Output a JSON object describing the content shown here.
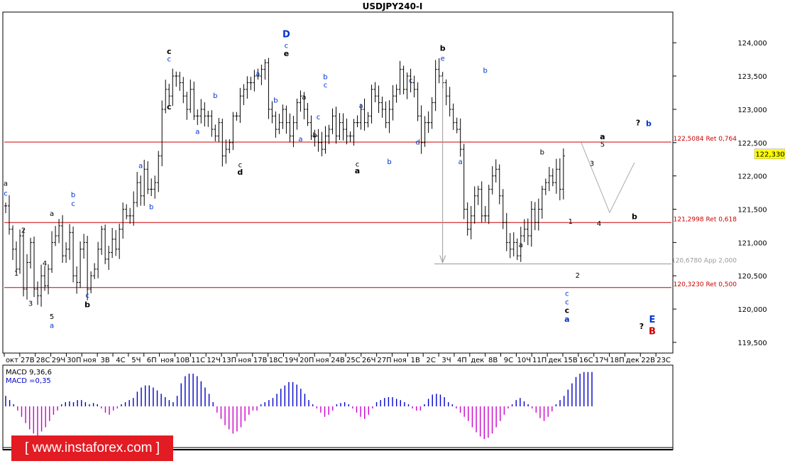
{
  "chart_data": {
    "type": "line",
    "title": "USDJPY240-I",
    "price_axis": {
      "range": [
        119.35,
        124.45
      ],
      "ticks": [
        "124,000",
        "123,500",
        "123,000",
        "122,500",
        "122,000",
        "121,500",
        "121,000",
        "120,500",
        "120,000",
        "119,500"
      ],
      "tick_values": [
        124.0,
        123.5,
        123.0,
        122.5,
        122.0,
        121.5,
        121.0,
        120.5,
        120.0,
        119.5
      ],
      "current_price": "122,330",
      "current_value": 122.33
    },
    "time_axis": {
      "labels": [
        "окт",
        "27В",
        "28С",
        "29Ч",
        "30П",
        "ноя",
        "3В",
        "4С",
        "5Ч",
        "6П",
        "ноя",
        "10В",
        "11С",
        "12Ч",
        "13П",
        "ноя",
        "17В",
        "18С",
        "19Ч",
        "20П",
        "ноя",
        "24В",
        "25С",
        "26Ч",
        "27П",
        "ноя",
        "1В",
        "2С",
        "3Ч",
        "4П",
        "дек",
        "8В",
        "9С",
        "10Ч",
        "11П",
        "дек",
        "15В",
        "16С",
        "17Ч",
        "18П",
        "дек",
        "22В",
        "23С"
      ]
    },
    "levels": [
      {
        "value": 122.5084,
        "label": "122,5084 Ret 0,764",
        "color": "#cc0000"
      },
      {
        "value": 121.2998,
        "label": "121,2998 Ret 0,618",
        "color": "#cc0000"
      },
      {
        "value": 120.678,
        "label": "120,6780 App 2,000",
        "color": "#999999"
      },
      {
        "value": 120.323,
        "label": "120,3230 Ret 0,500",
        "color": "#cc0000"
      }
    ],
    "series": [
      {
        "values": [
          121.55,
          121.2,
          120.9,
          120.6,
          121.1,
          120.3,
          120.7,
          121.0,
          120.3,
          120.2,
          120.5,
          120.35,
          120.6,
          121.0,
          121.1,
          121.25,
          120.8,
          120.9,
          121.15,
          120.5,
          120.4,
          120.9,
          121.0,
          120.3,
          120.5,
          120.6,
          120.9,
          121.2,
          120.75,
          120.85,
          121.05,
          120.9,
          121.2,
          121.5,
          121.4,
          121.4,
          121.6,
          121.9,
          121.7,
          122.1,
          121.8,
          121.8,
          121.9,
          122.3,
          123.0,
          123.3,
          123.2,
          123.5,
          123.5,
          123.4,
          123.2,
          123.0,
          123.3,
          122.9,
          122.9,
          123.0,
          122.9,
          122.9,
          122.7,
          122.6,
          122.8,
          122.3,
          122.4,
          122.5,
          122.9,
          122.9,
          123.2,
          123.3,
          123.4,
          123.4,
          123.5,
          123.5,
          123.6,
          123.7,
          123.0,
          122.9,
          122.7,
          122.8,
          123.0,
          122.8,
          122.6,
          122.8,
          123.1,
          123.2,
          123.0,
          122.8,
          122.6,
          122.6,
          122.5,
          122.4,
          122.6,
          122.7,
          122.9,
          122.6,
          122.8,
          122.7,
          122.6,
          122.6,
          122.8,
          122.8,
          123.0,
          122.8,
          122.9,
          123.3,
          123.2,
          123.1,
          123.0,
          122.8,
          123.0,
          123.2,
          123.3,
          123.6,
          123.3,
          123.5,
          123.4,
          123.3,
          122.9,
          122.5,
          122.8,
          122.8,
          123.1,
          123.6,
          123.5,
          123.4,
          123.2,
          123.0,
          122.8,
          122.7,
          122.4,
          121.5,
          121.2,
          121.4,
          121.7,
          121.8,
          121.4,
          121.4,
          121.8,
          122.0,
          122.1,
          121.7,
          121.3,
          121.0,
          120.9,
          121.0,
          120.8,
          121.1,
          121.2,
          121.1,
          121.5,
          121.3,
          121.5,
          121.8,
          121.9,
          122.0,
          121.9,
          122.1,
          121.8,
          122.3
        ]
      }
    ],
    "arrows": [
      {
        "type": "down",
        "x_index": 123,
        "from": 123.5,
        "to": 120.7
      }
    ],
    "projection": {
      "points": [
        [
          162,
          122.5
        ],
        [
          170,
          121.45
        ],
        [
          177,
          122.2
        ]
      ]
    },
    "wave_labels": [
      {
        "t": "a",
        "i": 0,
        "v": 121.85,
        "c": "#000"
      },
      {
        "t": "c",
        "i": 0,
        "v": 121.7,
        "c": "#0033cc"
      },
      {
        "t": "2",
        "i": 5,
        "v": 121.15,
        "c": "#000"
      },
      {
        "t": "1",
        "i": 3,
        "v": 120.5,
        "c": "#000"
      },
      {
        "t": "3",
        "i": 7,
        "v": 120.05,
        "c": "#000"
      },
      {
        "t": "4",
        "i": 11,
        "v": 120.65,
        "c": "#000"
      },
      {
        "t": "a",
        "i": 13,
        "v": 121.4,
        "c": "#000"
      },
      {
        "t": "5",
        "i": 13,
        "v": 119.85,
        "c": "#000"
      },
      {
        "t": "a",
        "i": 13,
        "v": 119.72,
        "c": "#0033cc"
      },
      {
        "t": "b",
        "i": 19,
        "v": 121.68,
        "c": "#0033cc"
      },
      {
        "t": "c",
        "i": 19,
        "v": 121.55,
        "c": "#0033cc"
      },
      {
        "t": "c",
        "i": 23,
        "v": 120.17,
        "c": "#0033cc"
      },
      {
        "t": "b",
        "i": 23,
        "v": 120.03,
        "c": "#000",
        "bold": true
      },
      {
        "t": "a",
        "i": 38,
        "v": 122.12,
        "c": "#0033cc"
      },
      {
        "t": "b",
        "i": 41,
        "v": 121.5,
        "c": "#0033cc"
      },
      {
        "t": "c",
        "i": 46,
        "v": 123.83,
        "c": "#000",
        "bold": true
      },
      {
        "t": "c",
        "i": 46,
        "v": 123.72,
        "c": "#0033cc"
      },
      {
        "t": "c",
        "i": 46,
        "v": 123.0,
        "c": "#000",
        "bold": true
      },
      {
        "t": "b",
        "i": 59,
        "v": 123.17,
        "c": "#0033cc"
      },
      {
        "t": "a",
        "i": 54,
        "v": 122.63,
        "c": "#0033cc"
      },
      {
        "t": "c",
        "i": 66,
        "v": 122.13,
        "c": "#000"
      },
      {
        "t": "d",
        "i": 66,
        "v": 122.02,
        "c": "#000",
        "bold": true
      },
      {
        "t": "a",
        "i": 71,
        "v": 123.5,
        "c": "#0033cc"
      },
      {
        "t": "b",
        "i": 76,
        "v": 123.1,
        "c": "#0033cc"
      },
      {
        "t": "D",
        "i": 79,
        "v": 124.08,
        "c": "#0033cc",
        "big": true
      },
      {
        "t": "c",
        "i": 79,
        "v": 123.92,
        "c": "#0033cc"
      },
      {
        "t": "e",
        "i": 79,
        "v": 123.8,
        "c": "#000",
        "bold": true
      },
      {
        "t": "a",
        "i": 84,
        "v": 123.15,
        "c": "#000"
      },
      {
        "t": "a",
        "i": 83,
        "v": 122.52,
        "c": "#0033cc"
      },
      {
        "t": "b",
        "i": 87,
        "v": 122.58,
        "c": "#000"
      },
      {
        "t": "b",
        "i": 90,
        "v": 123.45,
        "c": "#0033cc"
      },
      {
        "t": "c",
        "i": 90,
        "v": 123.33,
        "c": "#0033cc"
      },
      {
        "t": "c",
        "i": 88,
        "v": 122.85,
        "c": "#0033cc"
      },
      {
        "t": "c",
        "i": 99,
        "v": 122.14,
        "c": "#000"
      },
      {
        "t": "a",
        "i": 99,
        "v": 122.04,
        "c": "#000",
        "bold": true
      },
      {
        "t": "a",
        "i": 100,
        "v": 123.02,
        "c": "#0033cc"
      },
      {
        "t": "b",
        "i": 108,
        "v": 122.18,
        "c": "#0033cc"
      },
      {
        "t": "c",
        "i": 114,
        "v": 123.4,
        "c": "#0033cc"
      },
      {
        "t": "d",
        "i": 116,
        "v": 122.47,
        "c": "#0033cc"
      },
      {
        "t": "b",
        "i": 123,
        "v": 123.88,
        "c": "#000",
        "bold": true
      },
      {
        "t": "e",
        "i": 123,
        "v": 123.73,
        "c": "#0033cc"
      },
      {
        "t": "a",
        "i": 128,
        "v": 122.18,
        "c": "#0033cc"
      },
      {
        "t": "b",
        "i": 135,
        "v": 123.55,
        "c": "#0033cc"
      },
      {
        "t": "a",
        "i": 145,
        "v": 120.93,
        "c": "#000"
      },
      {
        "t": "b",
        "i": 151,
        "v": 122.32,
        "c": "#000"
      },
      {
        "t": "1",
        "i": 159,
        "v": 121.28,
        "c": "#000"
      },
      {
        "t": "2",
        "i": 161,
        "v": 120.47,
        "c": "#000"
      },
      {
        "t": "c",
        "i": 158,
        "v": 120.2,
        "c": "#0033cc"
      },
      {
        "t": "c",
        "i": 158,
        "v": 120.07,
        "c": "#0033cc"
      },
      {
        "t": "c",
        "i": 158,
        "v": 119.94,
        "c": "#000",
        "bold": true
      },
      {
        "t": "a",
        "i": 158,
        "v": 119.81,
        "c": "#0033cc",
        "bold": true
      },
      {
        "t": "3",
        "i": 165,
        "v": 122.15,
        "c": "#000"
      },
      {
        "t": "a",
        "i": 168,
        "v": 122.55,
        "c": "#000",
        "bold": true
      },
      {
        "t": "5",
        "i": 168,
        "v": 122.44,
        "c": "#000"
      },
      {
        "t": "4",
        "i": 167,
        "v": 121.25,
        "c": "#000"
      },
      {
        "t": "b",
        "i": 177,
        "v": 121.35,
        "c": "#000",
        "bold": true
      },
      {
        "t": "?",
        "i": 178,
        "v": 122.76,
        "c": "#000",
        "bold": true
      },
      {
        "t": "b",
        "i": 181,
        "v": 122.75,
        "c": "#0033cc",
        "bold": true
      },
      {
        "t": "E",
        "i": 182,
        "v": 119.8,
        "c": "#0033cc",
        "big": true
      },
      {
        "t": "?",
        "i": 179,
        "v": 119.7,
        "c": "#000",
        "bold": true
      },
      {
        "t": "B",
        "i": 182,
        "v": 119.62,
        "c": "#cc0000",
        "big": true
      }
    ]
  },
  "macd": {
    "label1": "MACD 9,36,6",
    "label2": "MACD =0,35",
    "range": [
      -0.95,
      0.95
    ],
    "values": [
      0.25,
      0.15,
      0.05,
      -0.1,
      -0.25,
      -0.4,
      -0.55,
      -0.65,
      -0.7,
      -0.6,
      -0.5,
      -0.35,
      -0.2,
      -0.1,
      0.05,
      0.1,
      0.12,
      0.1,
      0.15,
      0.15,
      0.1,
      0.05,
      0.08,
      0.05,
      -0.05,
      -0.15,
      -0.2,
      -0.1,
      -0.05,
      0.05,
      0.1,
      0.15,
      0.2,
      0.35,
      0.45,
      0.5,
      0.5,
      0.45,
      0.38,
      0.3,
      0.22,
      0.15,
      0.1,
      0.25,
      0.55,
      0.72,
      0.78,
      0.78,
      0.72,
      0.6,
      0.45,
      0.3,
      0.1,
      -0.15,
      -0.3,
      -0.45,
      -0.55,
      -0.65,
      -0.6,
      -0.5,
      -0.35,
      -0.2,
      -0.1,
      -0.1,
      0.05,
      0.1,
      0.15,
      0.2,
      0.3,
      0.42,
      0.5,
      0.58,
      0.58,
      0.52,
      0.42,
      0.3,
      0.15,
      0.05,
      -0.05,
      -0.15,
      -0.25,
      -0.2,
      -0.1,
      0.05,
      0.08,
      0.1,
      0.05,
      -0.05,
      -0.15,
      -0.25,
      -0.3,
      -0.2,
      -0.05,
      0.1,
      0.15,
      0.2,
      0.22,
      0.22,
      0.18,
      0.15,
      0.1,
      0.05,
      -0.05,
      -0.1,
      -0.1,
      0.05,
      0.18,
      0.28,
      0.3,
      0.28,
      0.22,
      0.1,
      0.05,
      -0.05,
      -0.15,
      -0.25,
      -0.35,
      -0.5,
      -0.62,
      -0.72,
      -0.78,
      -0.75,
      -0.65,
      -0.5,
      -0.35,
      -0.2,
      -0.05,
      0.05,
      0.15,
      0.2,
      0.12,
      0.05,
      -0.05,
      -0.15,
      -0.28,
      -0.35,
      -0.25,
      -0.12,
      0.05,
      0.15,
      0.25,
      0.4,
      0.55,
      0.7,
      0.78,
      0.82,
      0.82,
      0.82
    ]
  },
  "watermark": "[ www.instaforex.com ]",
  "colors": {
    "up": "#0000cc",
    "down": "#cc00cc",
    "level": "#cc0000",
    "app": "#999999",
    "price_box": "#ffff00"
  }
}
